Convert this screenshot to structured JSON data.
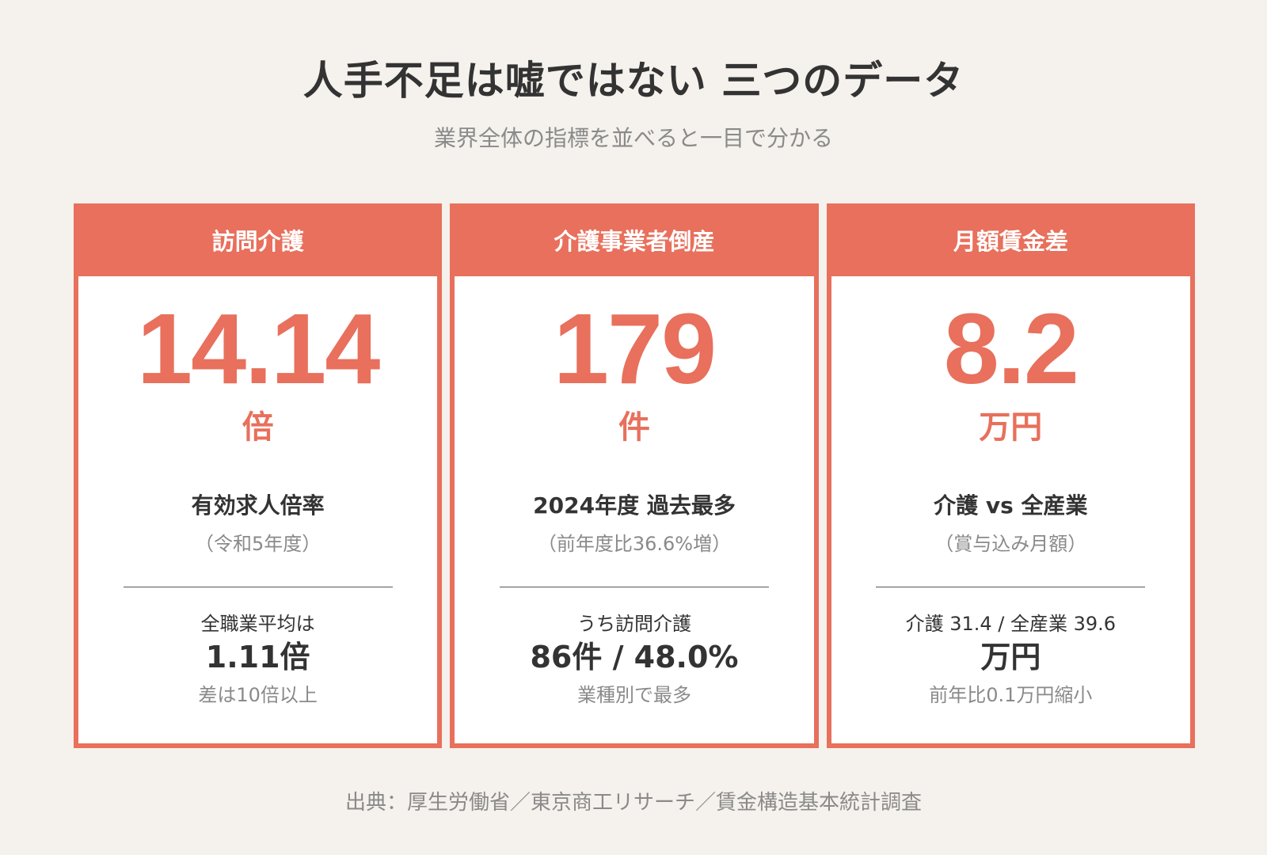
{
  "title": "人手不足は嘘ではない 三つのデータ",
  "subtitle": "業界全体の指標を並べると一目で分かる",
  "accent_color": "#e8705c",
  "cards": [
    {
      "header": "訪問介護",
      "value": "14.14",
      "unit": "倍",
      "label": "有効求人倍率",
      "note": "（令和5年度）",
      "sub_label": "全職業平均は",
      "sub_value": "1.11倍",
      "sub_note": "差は10倍以上"
    },
    {
      "header": "介護事業者倒産",
      "value": "179",
      "unit": "件",
      "label": "2024年度 過去最多",
      "note": "（前年度比36.6%増）",
      "sub_label": "うち訪問介護",
      "sub_value": "86件 / 48.0%",
      "sub_note": "業種別で最多"
    },
    {
      "header": "月額賃金差",
      "value": "8.2",
      "unit": "万円",
      "label": "介護 vs 全産業",
      "note": "（賞与込み月額）",
      "sub_label": "介護 31.4 / 全産業 39.6",
      "sub_value": "万円",
      "sub_note": "前年比0.1万円縮小"
    }
  ],
  "source": "出典：厚生労働省／東京商工リサーチ／賃金構造基本統計調査"
}
